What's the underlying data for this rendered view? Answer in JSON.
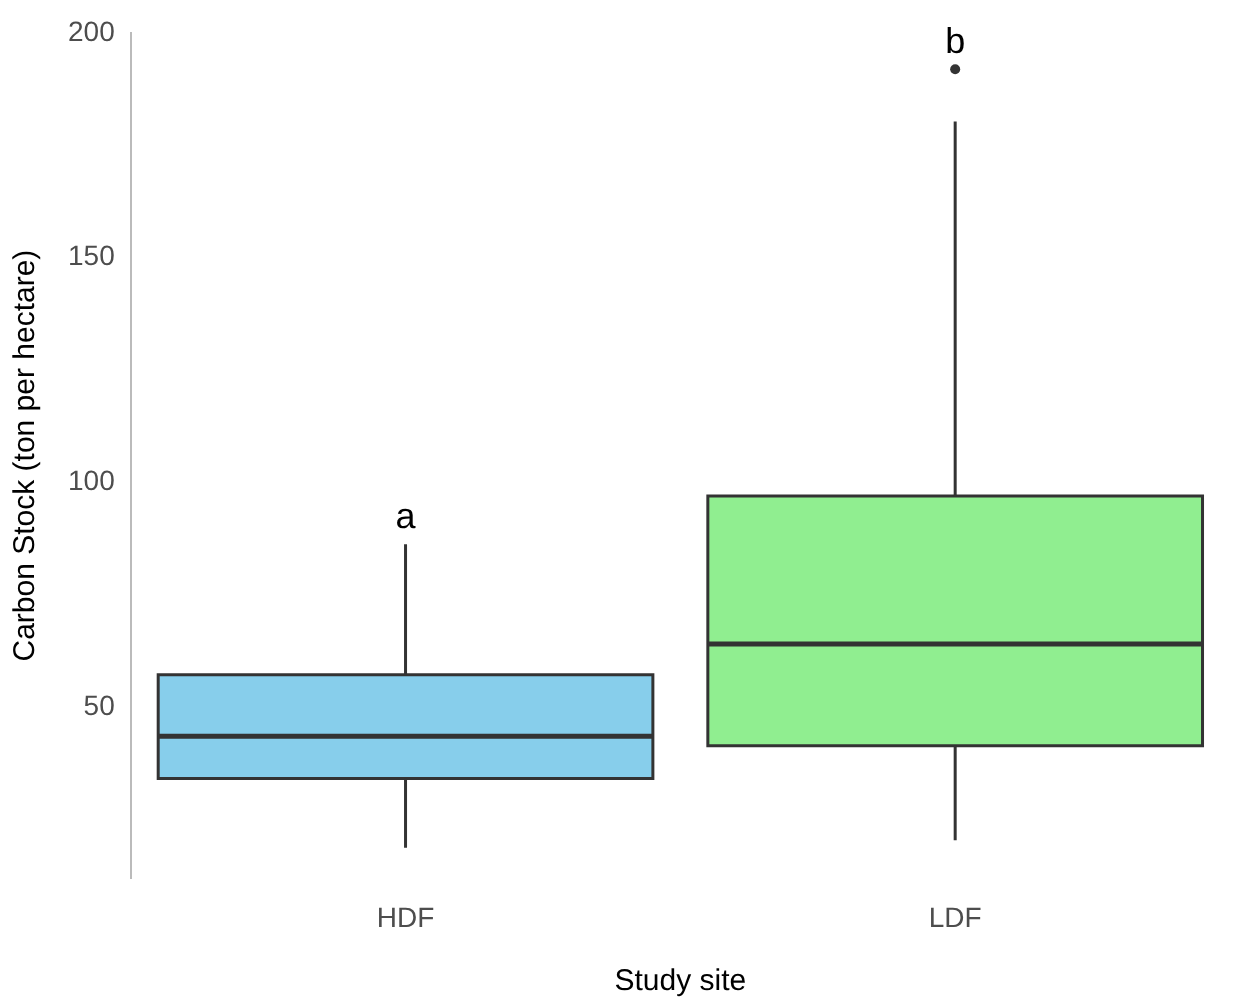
{
  "chart_data": {
    "type": "box",
    "xlabel": "Study site",
    "ylabel": "Carbon Stock (ton per hectare)",
    "categories": [
      "HDF",
      "LDF"
    ],
    "colors": [
      "#87ceeb",
      "#90ee90"
    ],
    "boxes": [
      {
        "low": 18.8,
        "q1": 34.2,
        "median": 43.6,
        "q3": 57.3,
        "high": 86.3
      },
      {
        "low": 20.5,
        "q1": 41.5,
        "median": 64.1,
        "q3": 97,
        "high": 180.3,
        "outliers": [
          191.9
        ]
      }
    ],
    "ylim": [
      12,
      200
    ],
    "yticks": [
      50,
      100,
      150,
      200
    ],
    "grid": false,
    "legend": false,
    "annotations": [
      "a",
      "b"
    ]
  }
}
